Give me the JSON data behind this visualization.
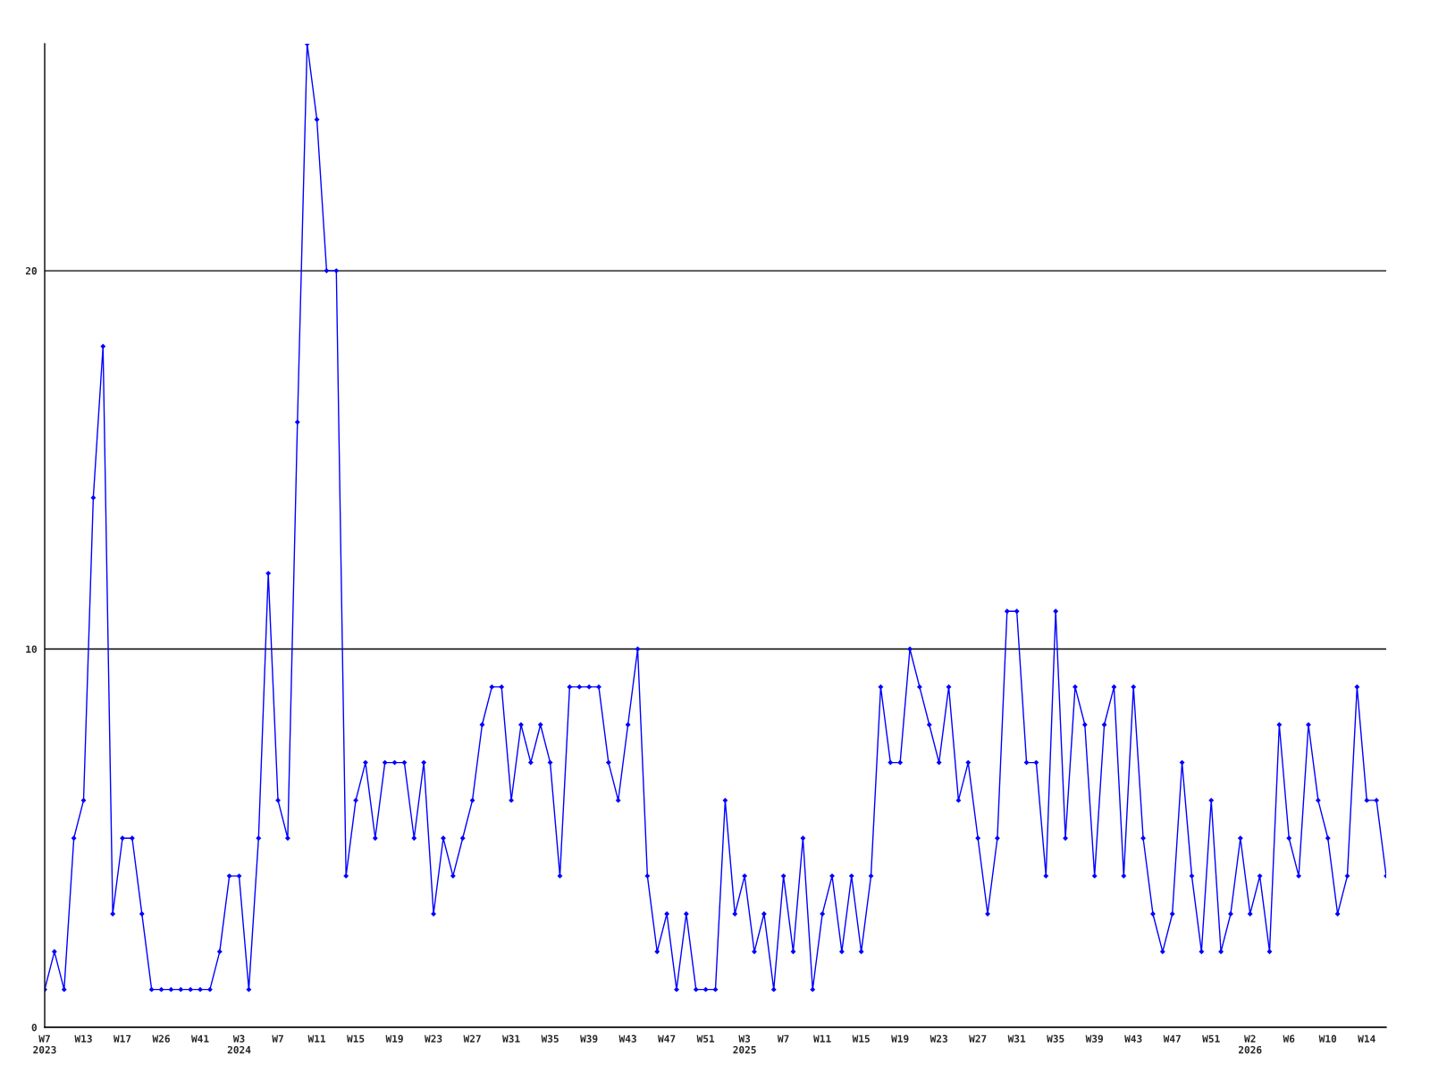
{
  "chart_data": {
    "type": "line",
    "categories": [
      "W7\n2023",
      null,
      null,
      null,
      "W13",
      null,
      null,
      null,
      "W17",
      null,
      null,
      null,
      "W26",
      null,
      null,
      null,
      "W41",
      null,
      null,
      null,
      "W3\n2024",
      null,
      null,
      null,
      "W7",
      null,
      null,
      null,
      "W11",
      null,
      null,
      null,
      "W15",
      null,
      null,
      null,
      "W19",
      null,
      null,
      null,
      "W23",
      null,
      null,
      null,
      "W27",
      null,
      null,
      null,
      "W31",
      null,
      null,
      null,
      "W35",
      null,
      null,
      null,
      "W39",
      null,
      null,
      null,
      "W43",
      null,
      null,
      null,
      "W47",
      null,
      null,
      null,
      "W51",
      null,
      null,
      null,
      "W3\n2025",
      null,
      null,
      null,
      "W7",
      null,
      null,
      null,
      "W11",
      null,
      null,
      null,
      "W15",
      null,
      null,
      null,
      "W19",
      null,
      null,
      null,
      "W23",
      null,
      null,
      null,
      "W27",
      null,
      null,
      null,
      "W31",
      null,
      null,
      null,
      "W35",
      null,
      null,
      null,
      "W39",
      null,
      null,
      null,
      "W43",
      null,
      null,
      null,
      "W47",
      null,
      null,
      null,
      "W51",
      null,
      null,
      null,
      "W2\n2026",
      null,
      null,
      null,
      "W6",
      null,
      null,
      null,
      "W10",
      null,
      null,
      null,
      "W14",
      null,
      null
    ],
    "series": [
      {
        "color": "#0000ff",
        "values": [
          1,
          2,
          1,
          5,
          6,
          14,
          18,
          3,
          5,
          5,
          3,
          1,
          1,
          1,
          1,
          1,
          1,
          1,
          2,
          4,
          4,
          1,
          5,
          12,
          6,
          5,
          16,
          26,
          24,
          20,
          20,
          4,
          6,
          7,
          5,
          7,
          7,
          7,
          5,
          7,
          3,
          5,
          4,
          5,
          6,
          8,
          9,
          9,
          6,
          8,
          7,
          8,
          7,
          4,
          9,
          9,
          9,
          9,
          7,
          6,
          8,
          10,
          4,
          2,
          3,
          1,
          3,
          1,
          1,
          1,
          6,
          3,
          4,
          2,
          3,
          1,
          4,
          2,
          5,
          1,
          3,
          4,
          2,
          4,
          2,
          4,
          9,
          7,
          7,
          10,
          9,
          8,
          7,
          9,
          6,
          7,
          5,
          3,
          5,
          11,
          11,
          7,
          7,
          4,
          11,
          5,
          9,
          8,
          4,
          8,
          9,
          4,
          9,
          5,
          3,
          2,
          3,
          7,
          4,
          2,
          6,
          2,
          3,
          5,
          3,
          4,
          2,
          8,
          5,
          4,
          8,
          6,
          5,
          3,
          4,
          9,
          6,
          6,
          4
        ]
      }
    ],
    "ylim": [
      0,
      26
    ],
    "yticks": [
      0,
      10,
      20
    ],
    "grid": "y",
    "marker": "diamond",
    "line_style": "solid"
  }
}
